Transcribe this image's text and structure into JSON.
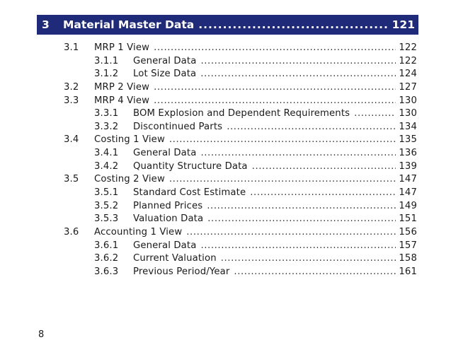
{
  "chapter": {
    "number": "3",
    "title": "Material Master Data",
    "page": "121"
  },
  "entries": [
    {
      "level": 2,
      "number": "3.1",
      "title": "MRP 1 View",
      "page": "122"
    },
    {
      "level": 3,
      "number": "3.1.1",
      "title": "General Data",
      "page": "122"
    },
    {
      "level": 3,
      "number": "3.1.2",
      "title": "Lot Size Data",
      "page": "124"
    },
    {
      "level": 2,
      "number": "3.2",
      "title": "MRP 2 View",
      "page": "127"
    },
    {
      "level": 2,
      "number": "3.3",
      "title": "MRP 4 View",
      "page": "130"
    },
    {
      "level": 3,
      "number": "3.3.1",
      "title": "BOM Explosion and Dependent Requirements",
      "page": "130"
    },
    {
      "level": 3,
      "number": "3.3.2",
      "title": "Discontinued Parts",
      "page": "134"
    },
    {
      "level": 2,
      "number": "3.4",
      "title": "Costing 1 View",
      "page": "135"
    },
    {
      "level": 3,
      "number": "3.4.1",
      "title": "General Data",
      "page": "136"
    },
    {
      "level": 3,
      "number": "3.4.2",
      "title": "Quantity Structure Data",
      "page": "139"
    },
    {
      "level": 2,
      "number": "3.5",
      "title": "Costing 2 View",
      "page": "147"
    },
    {
      "level": 3,
      "number": "3.5.1",
      "title": "Standard Cost Estimate",
      "page": "147"
    },
    {
      "level": 3,
      "number": "3.5.2",
      "title": "Planned Prices",
      "page": "149"
    },
    {
      "level": 3,
      "number": "3.5.3",
      "title": "Valuation Data",
      "page": "151"
    },
    {
      "level": 2,
      "number": "3.6",
      "title": "Accounting 1 View",
      "page": "156"
    },
    {
      "level": 3,
      "number": "3.6.1",
      "title": "General Data",
      "page": "157"
    },
    {
      "level": 3,
      "number": "3.6.2",
      "title": "Current Valuation",
      "page": "158"
    },
    {
      "level": 3,
      "number": "3.6.3",
      "title": "Previous Period/Year",
      "page": "161"
    }
  ],
  "footer": {
    "page_number": "8"
  },
  "colors": {
    "chapter_bar": "#1f2a78"
  }
}
